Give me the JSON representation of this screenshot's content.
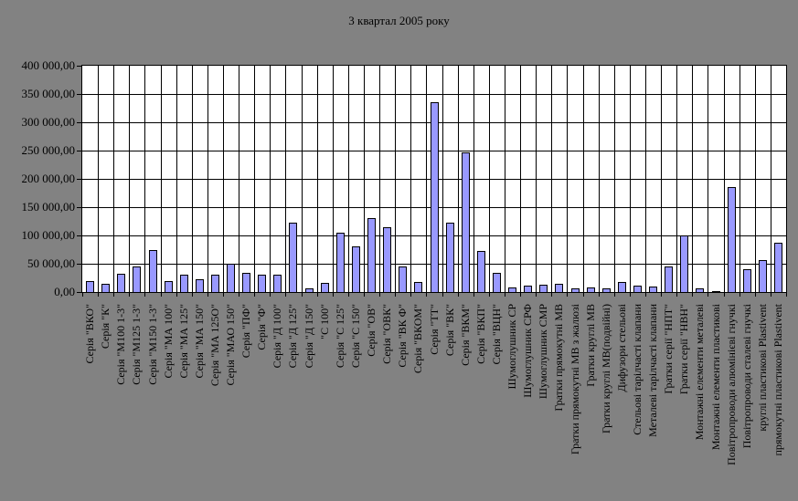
{
  "chart_data": {
    "type": "bar",
    "title": "3 квартал 2005 року",
    "xlabel": "",
    "ylabel": "",
    "ylim": [
      0,
      400000
    ],
    "ytick_step": 50000,
    "grid": true,
    "legend": "none",
    "ytick_labels": [
      "400 000,00",
      "350 000,00",
      "300 000,00",
      "250 000,00",
      "200 000,00",
      "150 000,00",
      "100 000,00",
      "50 000,00",
      "0,00"
    ],
    "categories": [
      "Серія \"ВКО\"",
      "Серія \"К\"",
      "Серія \"М100 1-3\"",
      "Серія \"М125 1-3\"",
      "Серія \"М150 1-3\"",
      "Серія \"МА 100\"",
      "Серія \"МА 125\"",
      "Серія \"МА 150\"",
      "Серія \"МА 125О\"",
      "Серія \"МАО 150\"",
      "Серія \"ПФ\"",
      "Серія \"Ф\"",
      "Серія \"Д 100\"",
      "Серія \"Д 125\"",
      "Серія \"Д 150\"",
      "\"С 100\"",
      "Серія \"С 125\"",
      "Серія \"С 150\"",
      "Серія \"ОВ\"",
      "Серія \"ОВК\"",
      "Серія \"ВК Ф\"",
      "Серія \"ВКОМ\"",
      "Серія \"ТТ\"",
      "Серія \"ВК\"",
      "Серія \"ВКМ\"",
      "Серія \"ВКП\"",
      "Серія \"ВЦН\"",
      "Шумоглушник СР",
      "Шумоглушник СРФ",
      "Шумоглушник СМР",
      "Гратки прямокутні МВ",
      "Гратки прямокутні МВ з жалюзі",
      "Гратки круглі МВ",
      "Гратки круглі МВ(подвійні)",
      "Дифузори стельові",
      "Стельові тарілчасті клапани",
      "Металеві тарілчасті клапани",
      "Гратки серії \"НПТ\"",
      "Гратки серії \"НВН\"",
      "Монтажні елементи металеві",
      "Монтажні елементи пластикові",
      "Повітропроводи алюмінієві гнучкі",
      "Повітропроводи сталеві гнучкі",
      "круглі пластикові Plastivent",
      "прямокутні пластикові Plastivent"
    ],
    "values": [
      20000,
      15000,
      32000,
      45000,
      74000,
      20000,
      31000,
      23000,
      31000,
      50000,
      34000,
      31000,
      31000,
      123000,
      7000,
      16000,
      105000,
      80000,
      130000,
      115000,
      45000,
      18000,
      335000,
      122000,
      246000,
      73000,
      34000,
      8000,
      12000,
      13000,
      15000,
      7000,
      8000,
      7000,
      17000,
      12000,
      10000,
      45000,
      100000,
      6000,
      1500,
      186000,
      41000,
      57000,
      87000
    ],
    "colors": {
      "background": "#828282",
      "plot_background": "#FFFFFF",
      "bar_fill": "#9999FF",
      "bar_border": "#000000",
      "gridline": "#000000",
      "text": "#000000"
    }
  }
}
